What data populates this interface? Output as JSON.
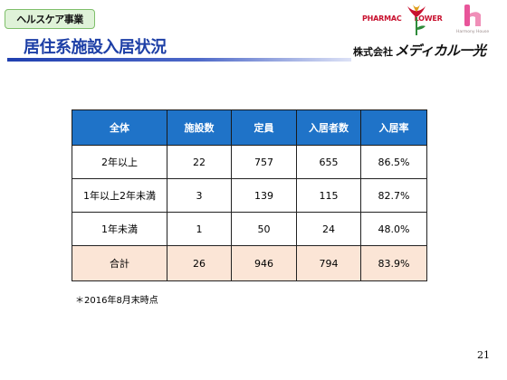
{
  "header": {
    "section_tag": "ヘルスケア事業",
    "title": "居住系施設入居状況",
    "logo_pharma": "PHARMAC",
    "logo_flower_tail": "LOWER",
    "logo_harmony_caption": "Harmony House",
    "company_prefix": "株式会社",
    "company_brand": "メディカル一光"
  },
  "table": {
    "headers": [
      "全体",
      "施設数",
      "定員",
      "入居者数",
      "入居率"
    ],
    "rows": [
      {
        "label": "2年以上",
        "facilities": "22",
        "capacity": "757",
        "residents": "655",
        "rate": "86.5%"
      },
      {
        "label": "1年以上2年未満",
        "facilities": "3",
        "capacity": "139",
        "residents": "115",
        "rate": "82.7%"
      },
      {
        "label": "1年未満",
        "facilities": "1",
        "capacity": "50",
        "residents": "24",
        "rate": "48.0%"
      }
    ],
    "total": {
      "label": "合計",
      "facilities": "26",
      "capacity": "946",
      "residents": "794",
      "rate": "83.9%"
    }
  },
  "note": "＊2016年8月末時点",
  "page_number": "21",
  "colors": {
    "header_bg": "#1f73c8",
    "total_row_bg": "#fbe5d6",
    "title": "#1d3fa6",
    "tag_bg": "#dff2d8",
    "logo_red": "#c8102e",
    "logo_pink": "#e8559a"
  }
}
